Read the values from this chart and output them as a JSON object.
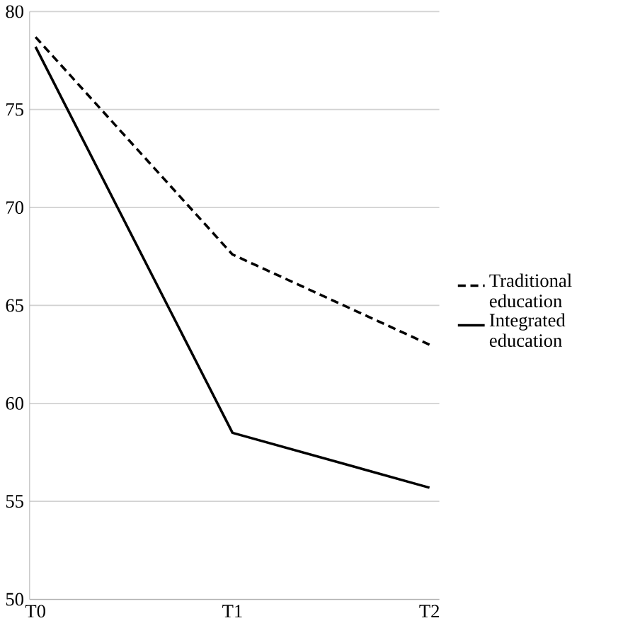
{
  "chart_data": {
    "type": "line",
    "categories": [
      "T0",
      "T1",
      "T2"
    ],
    "series": [
      {
        "name": "Traditional education",
        "color": "#000000",
        "line_style": "dashed",
        "values": [
          78.7,
          67.6,
          63.0
        ]
      },
      {
        "name": "Integrated education",
        "color": "#000000",
        "line_style": "solid",
        "values": [
          78.2,
          58.5,
          55.7
        ]
      }
    ],
    "ylim": [
      50,
      80
    ],
    "yticks": [
      50,
      55,
      60,
      65,
      70,
      75,
      80
    ],
    "grid": "y",
    "legend": "right",
    "marker": "none"
  }
}
